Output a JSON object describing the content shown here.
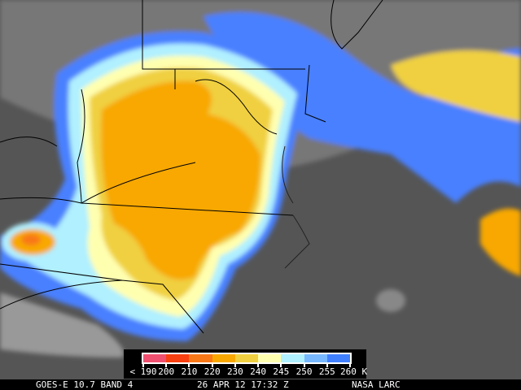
{
  "image": {
    "type": "GOES-E infrared satellite image",
    "region": "Mid-Atlantic US",
    "background_gray": "#5a5a5a"
  },
  "legend": {
    "unit": "K",
    "colors": [
      "#f05070",
      "#f84010",
      "#f87818",
      "#f8a800",
      "#f0d040",
      "#ffffb0",
      "#b0f0ff",
      "#78b8ff",
      "#4080ff"
    ],
    "ticks": [
      "< 190",
      "200",
      "210",
      "220",
      "230",
      "240",
      "245",
      "250",
      "255",
      "260"
    ]
  },
  "footer": {
    "satellite": "GOES-E 10.7 BAND 4",
    "datetime": "26 APR 12 17:32 Z",
    "source": "NASA LARC"
  }
}
